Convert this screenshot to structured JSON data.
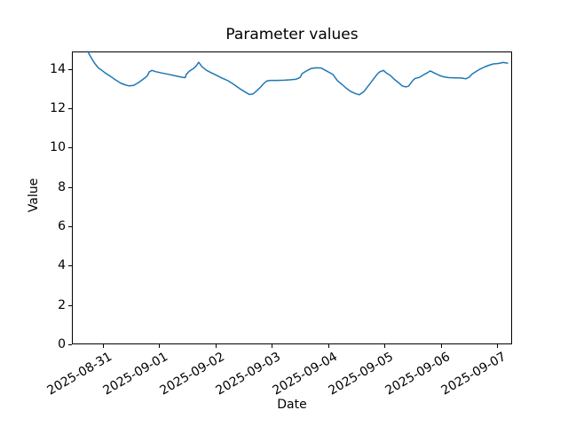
{
  "figure": {
    "background": "#ffffff",
    "text_color": "#000000",
    "spine_color": "#000000"
  },
  "chart_data": {
    "type": "line",
    "title": "Parameter values",
    "xlabel": "Date",
    "ylabel": "Value",
    "grid": false,
    "legend": "none",
    "line_color": "#1f77b4",
    "line_width": 1.5,
    "x_tick_labels": [
      "2025-08-31",
      "2025-09-01",
      "2025-09-02",
      "2025-09-03",
      "2025-09-04",
      "2025-09-05",
      "2025-09-06",
      "2025-09-07"
    ],
    "x_ticks_days": [
      0,
      1,
      2,
      3,
      4,
      5,
      6,
      7
    ],
    "y_tick_labels": [
      "0",
      "2",
      "4",
      "6",
      "8",
      "10",
      "12",
      "14"
    ],
    "y_ticks": [
      0,
      2,
      4,
      6,
      8,
      10,
      12,
      14
    ],
    "xlim_days": [
      -0.551,
      7.26
    ],
    "ylim": [
      0,
      14.89
    ],
    "series": [
      {
        "x_days": [
          -0.27,
          -0.21,
          -0.15,
          -0.08,
          -0.03,
          0.03,
          0.13,
          0.22,
          0.31,
          0.39,
          0.46,
          0.54,
          0.61,
          0.69,
          0.76,
          0.79,
          0.82,
          0.87,
          0.94,
          1.04,
          1.16,
          1.29,
          1.4,
          1.46,
          1.48,
          1.53,
          1.57,
          1.61,
          1.65,
          1.7,
          1.76,
          1.84,
          1.92,
          2.03,
          2.11,
          2.22,
          2.3,
          2.38,
          2.46,
          2.54,
          2.6,
          2.66,
          2.72,
          2.79,
          2.85,
          2.9,
          2.96,
          3.09,
          3.21,
          3.33,
          3.43,
          3.5,
          3.53,
          3.61,
          3.69,
          3.78,
          3.87,
          3.95,
          4.08,
          4.16,
          4.24,
          4.31,
          4.39,
          4.47,
          4.55,
          4.63,
          4.71,
          4.79,
          4.87,
          4.91,
          4.98,
          5.02,
          5.1,
          5.18,
          5.26,
          5.31,
          5.37,
          5.42,
          5.46,
          5.5,
          5.54,
          5.61,
          5.65,
          5.7,
          5.76,
          5.81,
          5.89,
          5.97,
          6.05,
          6.14,
          6.25,
          6.36,
          6.44,
          6.5,
          6.55,
          6.61,
          6.69,
          6.77,
          6.85,
          6.93,
          7.02,
          7.1,
          7.18
        ],
        "values": [
          14.89,
          14.58,
          14.3,
          14.05,
          13.95,
          13.82,
          13.63,
          13.45,
          13.29,
          13.2,
          13.14,
          13.16,
          13.27,
          13.43,
          13.58,
          13.67,
          13.85,
          13.93,
          13.86,
          13.8,
          13.73,
          13.65,
          13.58,
          13.56,
          13.73,
          13.88,
          13.96,
          14.03,
          14.14,
          14.34,
          14.11,
          13.93,
          13.81,
          13.66,
          13.54,
          13.4,
          13.26,
          13.1,
          12.94,
          12.8,
          12.7,
          12.73,
          12.87,
          13.06,
          13.25,
          13.38,
          13.42,
          13.42,
          13.43,
          13.45,
          13.48,
          13.57,
          13.75,
          13.9,
          14.02,
          14.06,
          14.05,
          13.93,
          13.72,
          13.41,
          13.22,
          13.04,
          12.87,
          12.76,
          12.69,
          12.85,
          13.15,
          13.45,
          13.75,
          13.85,
          13.93,
          13.81,
          13.67,
          13.45,
          13.27,
          13.14,
          13.09,
          13.12,
          13.27,
          13.42,
          13.52,
          13.57,
          13.63,
          13.72,
          13.81,
          13.9,
          13.78,
          13.67,
          13.6,
          13.56,
          13.55,
          13.54,
          13.5,
          13.58,
          13.74,
          13.85,
          13.99,
          14.1,
          14.19,
          14.26,
          14.28,
          14.33,
          14.3
        ]
      }
    ]
  }
}
